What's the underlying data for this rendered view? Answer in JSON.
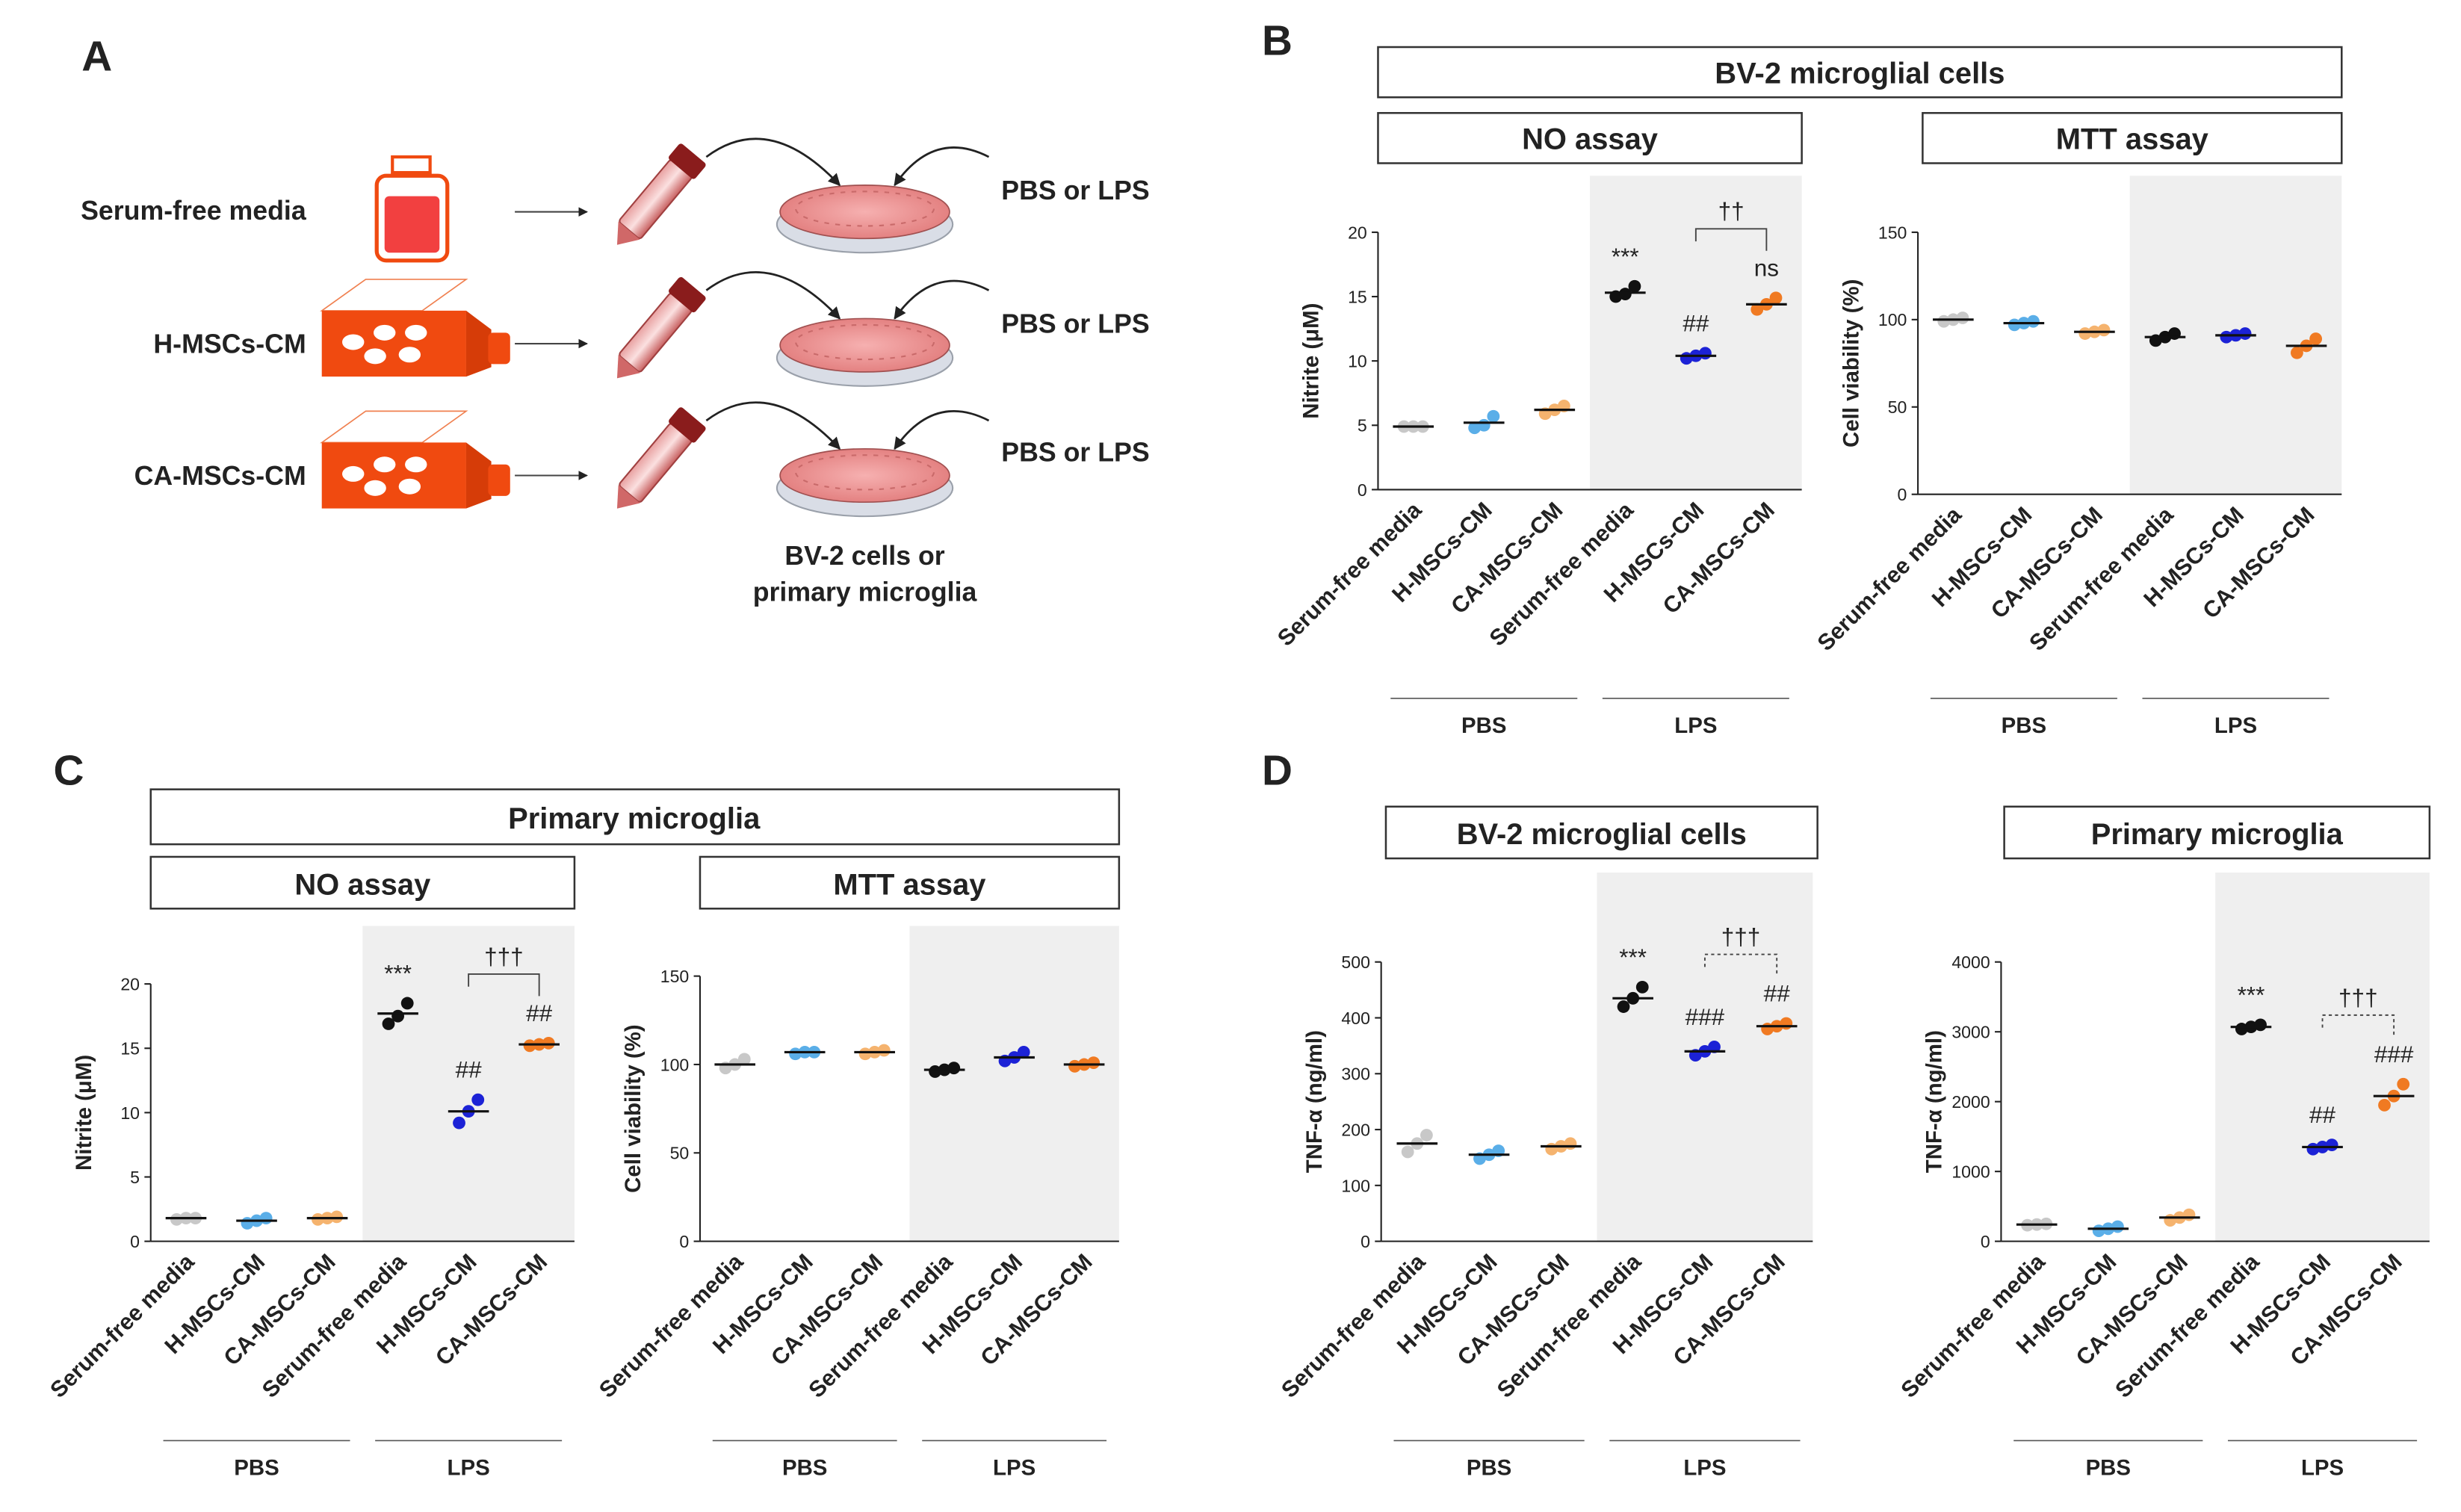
{
  "panel_labels": [
    "A",
    "B",
    "C",
    "D"
  ],
  "panel_a": {
    "rows": [
      {
        "label": "Serum-free media",
        "treatment": "PBS or LPS"
      },
      {
        "label": "H-MSCs-CM",
        "treatment": "PBS or LPS"
      },
      {
        "label": "CA-MSCs-CM",
        "treatment": "PBS or LPS"
      }
    ],
    "cells": [
      "BV-2 cells or",
      "primary microglia"
    ]
  },
  "headers": {
    "b": "BV-2 microglial cells",
    "c": "Primary microglia"
  },
  "chart_data": [
    {
      "type": "dot",
      "title": "NO assay",
      "ylabel": "Nitrite (μM)",
      "categories": [
        "Serum-free media",
        "H-MSCs-CM",
        "CA-MSCs-CM",
        "Serum-free media",
        "H-MSCs-CM",
        "CA-MSCs-CM"
      ],
      "groups": [
        "PBS",
        "LPS"
      ],
      "colors": [
        "#c8c8c8",
        "#5aaee8",
        "#f5b36e",
        "#111111",
        "#1c22d6",
        "#f07a22"
      ],
      "values": [
        4.9,
        5.2,
        6.2,
        15.3,
        10.4,
        14.4
      ],
      "points": [
        [
          4.9,
          4.9,
          4.9
        ],
        [
          4.8,
          5.0,
          5.7
        ],
        [
          5.9,
          6.2,
          6.5
        ],
        [
          15.0,
          15.2,
          15.8
        ],
        [
          10.2,
          10.4,
          10.6
        ],
        [
          14.0,
          14.4,
          14.9
        ]
      ],
      "ylim": [
        0,
        20
      ],
      "yticks": [
        0,
        5,
        10,
        15,
        20
      ],
      "annotations": [
        {
          "text": "***",
          "category": 3
        },
        {
          "text": "##",
          "category": 4
        },
        {
          "text": "ns",
          "category": 5
        }
      ],
      "bracket": {
        "text": "††",
        "from": 4,
        "to": 5,
        "style": "solid"
      }
    },
    {
      "type": "dot",
      "title": "MTT assay",
      "ylabel": "Cell viability (%)",
      "categories": [
        "Serum-free media",
        "H-MSCs-CM",
        "CA-MSCs-CM",
        "Serum-free media",
        "H-MSCs-CM",
        "CA-MSCs-CM"
      ],
      "groups": [
        "PBS",
        "LPS"
      ],
      "colors": [
        "#c8c8c8",
        "#5aaee8",
        "#f5b36e",
        "#111111",
        "#1c22d6",
        "#f07a22"
      ],
      "values": [
        100,
        98,
        93,
        90,
        91,
        85
      ],
      "points": [
        [
          99,
          100,
          101
        ],
        [
          97,
          98,
          99
        ],
        [
          92,
          93,
          94
        ],
        [
          88,
          90,
          92
        ],
        [
          90,
          91,
          92
        ],
        [
          81,
          85,
          89
        ]
      ],
      "ylim": [
        0,
        150
      ],
      "yticks": [
        0,
        50,
        100,
        150
      ]
    },
    {
      "type": "dot",
      "title": "NO assay",
      "ylabel": "Nitrite (μM)",
      "categories": [
        "Serum-free media",
        "H-MSCs-CM",
        "CA-MSCs-CM",
        "Serum-free media",
        "H-MSCs-CM",
        "CA-MSCs-CM"
      ],
      "groups": [
        "PBS",
        "LPS"
      ],
      "colors": [
        "#c8c8c8",
        "#5aaee8",
        "#f5b36e",
        "#111111",
        "#1c22d6",
        "#f07a22"
      ],
      "values": [
        1.8,
        1.6,
        1.8,
        17.7,
        10.1,
        15.3
      ],
      "points": [
        [
          1.7,
          1.8,
          1.8
        ],
        [
          1.4,
          1.6,
          1.8
        ],
        [
          1.7,
          1.8,
          1.9
        ],
        [
          16.9,
          17.5,
          18.5
        ],
        [
          9.2,
          10.1,
          11.0
        ],
        [
          15.2,
          15.3,
          15.4
        ]
      ],
      "ylim": [
        0,
        20
      ],
      "yticks": [
        0,
        5,
        10,
        15,
        20
      ],
      "annotations": [
        {
          "text": "***",
          "category": 3
        },
        {
          "text": "##",
          "category": 4
        },
        {
          "text": "##",
          "category": 5
        }
      ],
      "bracket": {
        "text": "†††",
        "from": 4,
        "to": 5,
        "style": "solid"
      }
    },
    {
      "type": "dot",
      "title": "MTT assay",
      "ylabel": "Cell viability (%)",
      "categories": [
        "Serum-free media",
        "H-MSCs-CM",
        "CA-MSCs-CM",
        "Serum-free media",
        "H-MSCs-CM",
        "CA-MSCs-CM"
      ],
      "groups": [
        "PBS",
        "LPS"
      ],
      "colors": [
        "#c8c8c8",
        "#5aaee8",
        "#f5b36e",
        "#111111",
        "#1c22d6",
        "#f07a22"
      ],
      "values": [
        100,
        107,
        107,
        97,
        104,
        100
      ],
      "points": [
        [
          98,
          100,
          103
        ],
        [
          106,
          107,
          107
        ],
        [
          106,
          107,
          108
        ],
        [
          96,
          97,
          98
        ],
        [
          102,
          104,
          107
        ],
        [
          99,
          100,
          101
        ]
      ],
      "ylim": [
        0,
        150
      ],
      "yticks": [
        0,
        50,
        100,
        150
      ]
    },
    {
      "type": "dot",
      "title": "BV-2 microglial cells",
      "ylabel": "TNF-α (ng/ml)",
      "categories": [
        "Serum-free media",
        "H-MSCs-CM",
        "CA-MSCs-CM",
        "Serum-free media",
        "H-MSCs-CM",
        "CA-MSCs-CM"
      ],
      "groups": [
        "PBS",
        "LPS"
      ],
      "colors": [
        "#c8c8c8",
        "#5aaee8",
        "#f5b36e",
        "#111111",
        "#1c22d6",
        "#f07a22"
      ],
      "values": [
        175,
        155,
        170,
        435,
        340,
        385
      ],
      "points": [
        [
          160,
          175,
          190
        ],
        [
          148,
          155,
          162
        ],
        [
          165,
          170,
          175
        ],
        [
          420,
          435,
          455
        ],
        [
          333,
          340,
          348
        ],
        [
          380,
          385,
          390
        ]
      ],
      "ylim": [
        0,
        500
      ],
      "yticks": [
        0,
        100,
        200,
        300,
        400,
        500
      ],
      "annotations": [
        {
          "text": "***",
          "category": 3
        },
        {
          "text": "###",
          "category": 4
        },
        {
          "text": "##",
          "category": 5
        }
      ],
      "bracket": {
        "text": "†††",
        "from": 4,
        "to": 5,
        "style": "dashed"
      }
    },
    {
      "type": "dot",
      "title": "Primary microglia",
      "ylabel": "TNF-α (ng/ml)",
      "categories": [
        "Serum-free media",
        "H-MSCs-CM",
        "CA-MSCs-CM",
        "Serum-free media",
        "H-MSCs-CM",
        "CA-MSCs-CM"
      ],
      "groups": [
        "PBS",
        "LPS"
      ],
      "colors": [
        "#c8c8c8",
        "#5aaee8",
        "#f5b36e",
        "#111111",
        "#1c22d6",
        "#f07a22"
      ],
      "values": [
        240,
        180,
        340,
        3070,
        1350,
        2080
      ],
      "points": [
        [
          230,
          240,
          250
        ],
        [
          150,
          180,
          210
        ],
        [
          300,
          340,
          380
        ],
        [
          3040,
          3070,
          3100
        ],
        [
          1320,
          1350,
          1380
        ],
        [
          1950,
          2080,
          2250
        ]
      ],
      "ylim": [
        0,
        4000
      ],
      "yticks": [
        0,
        1000,
        2000,
        3000,
        4000
      ],
      "annotations": [
        {
          "text": "***",
          "category": 3
        },
        {
          "text": "##",
          "category": 4
        },
        {
          "text": "###",
          "category": 5
        }
      ],
      "bracket": {
        "text": "†††",
        "from": 4,
        "to": 5,
        "style": "dashed"
      }
    }
  ]
}
